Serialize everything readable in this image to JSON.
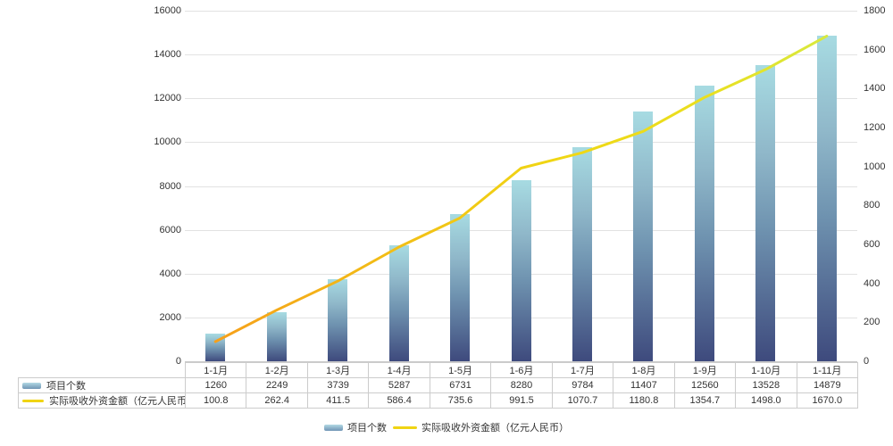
{
  "chart_data": {
    "type": "combo",
    "title": "",
    "categories": [
      "1-1月",
      "1-2月",
      "1-3月",
      "1-4月",
      "1-5月",
      "1-6月",
      "1-7月",
      "1-8月",
      "1-9月",
      "1-10月",
      "1-11月"
    ],
    "series": [
      {
        "name": "项目个数",
        "type": "bar",
        "axis": "left",
        "values": [
          1260,
          2249,
          3739,
          5287,
          6731,
          8280,
          9784,
          11407,
          12560,
          13528,
          14879
        ]
      },
      {
        "name": "实际吸收外资金额（亿元人民币）",
        "type": "line",
        "axis": "right",
        "values": [
          100.8,
          262.4,
          411.5,
          586.4,
          735.6,
          991.5,
          1070.7,
          1180.8,
          1354.7,
          1498.0,
          1670.0
        ]
      }
    ],
    "left_axis": {
      "min": 0,
      "max": 16000,
      "ticks": [
        "16000",
        "14000",
        "12000",
        "10000",
        "8000",
        "6000",
        "4000",
        "2000",
        "0"
      ]
    },
    "right_axis": {
      "min": 0,
      "max": 1800,
      "ticks": [
        "1800",
        "1600",
        "1400",
        "1200",
        "1000",
        "800",
        "600",
        "400",
        "200",
        "0"
      ]
    },
    "grid": true,
    "legend_position": "bottom"
  },
  "table": {
    "categories": [
      "1-1月",
      "1-2月",
      "1-3月",
      "1-4月",
      "1-5月",
      "1-6月",
      "1-7月",
      "1-8月",
      "1-9月",
      "1-10月",
      "1-11月"
    ],
    "rows": [
      {
        "label": "项目个数",
        "values": [
          "1260",
          "2249",
          "3739",
          "5287",
          "6731",
          "8280",
          "9784",
          "11407",
          "12560",
          "13528",
          "14879"
        ]
      },
      {
        "label": "实际吸收外资金额（亿元人民币）",
        "values": [
          "100.8",
          "262.4",
          "411.5",
          "586.4",
          "735.6",
          "991.5",
          "1070.7",
          "1180.8",
          "1354.7",
          "1498.0",
          "1670.0"
        ]
      }
    ]
  },
  "legend": {
    "items": [
      {
        "label": "项目个数",
        "swatch": "bar"
      },
      {
        "label": "实际吸收外资金额（亿元人民币）",
        "swatch": "line"
      }
    ]
  },
  "colors": {
    "bar_top": "#a7dbe2",
    "bar_mid": "#6f93b0",
    "bar_bottom": "#3e4a7d",
    "line_start": "#f6a01b",
    "line_mid": "#f0d613",
    "line_end": "#d8e93e",
    "grid": "#e2e2e2",
    "axis_line": "#c9c9c9",
    "table_border": "#cccccc",
    "text": "#333333"
  }
}
